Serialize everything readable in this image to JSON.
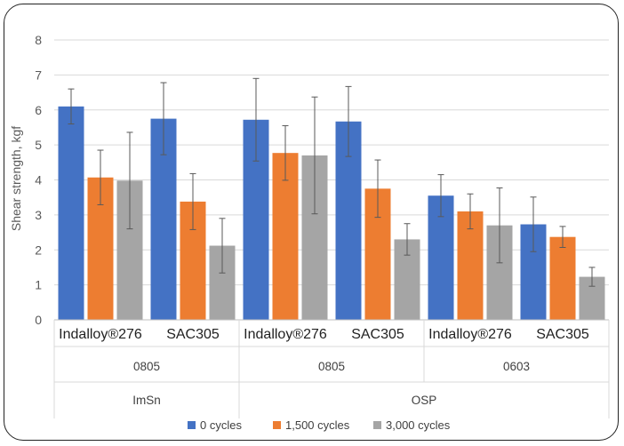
{
  "colors": {
    "s0": "#4472C4",
    "s1": "#ED7D31",
    "s2": "#A5A5A5",
    "grid": "#D9D9D9",
    "err": "#595959"
  },
  "chart_data": {
    "type": "bar",
    "ylabel": "Shear strength, kgf",
    "ylim": [
      0,
      8
    ],
    "yticks": [
      0,
      1,
      2,
      3,
      4,
      5,
      6,
      7,
      8
    ],
    "grid": true,
    "legend_position": "bottom",
    "categories": [
      "Indalloy®276",
      "SAC305",
      "Indalloy®276",
      "SAC305",
      "Indalloy®276",
      "SAC305"
    ],
    "group_level1": [
      "0805",
      "0805",
      "0603"
    ],
    "group_level2": [
      "ImSn",
      "OSP"
    ],
    "series": [
      {
        "name": "0 cycles",
        "values": [
          6.1,
          5.75,
          5.72,
          5.67,
          3.55,
          2.73
        ],
        "error": [
          0.5,
          1.03,
          1.18,
          1.0,
          0.6,
          0.78
        ]
      },
      {
        "name": "1,500 cycles",
        "values": [
          4.07,
          3.38,
          4.77,
          3.75,
          3.1,
          2.37
        ],
        "error": [
          0.78,
          0.8,
          0.78,
          0.82,
          0.5,
          0.3
        ]
      },
      {
        "name": "3,000 cycles",
        "values": [
          3.98,
          2.12,
          4.7,
          2.3,
          2.7,
          1.23
        ],
        "error": [
          1.38,
          0.78,
          1.67,
          0.45,
          1.07,
          0.27
        ]
      }
    ]
  }
}
